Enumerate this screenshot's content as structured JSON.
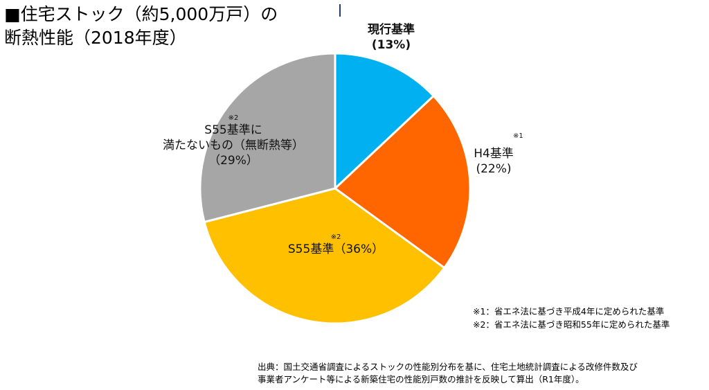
{
  "title": {
    "line1": "■住宅ストック（約5,000万戸）の",
    "line2": "断熱性能（2018年度）"
  },
  "chart_data": {
    "type": "pie",
    "slices": [
      {
        "key": "genko",
        "name": "現行基準",
        "value": 13,
        "pct_label": "(13%)",
        "color": "#00b0f0",
        "note_mark": ""
      },
      {
        "key": "h4",
        "name": "H4基準",
        "value": 22,
        "pct_label": "(22%)",
        "color": "#ff6600",
        "note_mark": "※1"
      },
      {
        "key": "s55",
        "name": "S55基準（36%）",
        "value": 36,
        "pct_label": "",
        "color": "#ffc000",
        "note_mark": "※2"
      },
      {
        "key": "under",
        "name_line1": "S55基準に",
        "name_line2": "満たないもの（無断熱等）",
        "value": 29,
        "pct_label": "（29%）",
        "color": "#a6a6a6",
        "note_mark": "※2"
      }
    ],
    "start": "12 o'clock",
    "direction": "clockwise",
    "legend": "none"
  },
  "notes": {
    "n1": "※1：省エネ法に基づき平成4年に定められた基準",
    "n2": "※2：省エネ法に基づき昭和55年に定められた基準"
  },
  "source": {
    "line1": "出典：国土交通省調査によるストックの性能別分布を基に、住宅土地統計調査による改修件数及び",
    "line2": "事業者アンケート等による新築住宅の性能別戸数の推計を反映して算出（R1年度）。"
  }
}
